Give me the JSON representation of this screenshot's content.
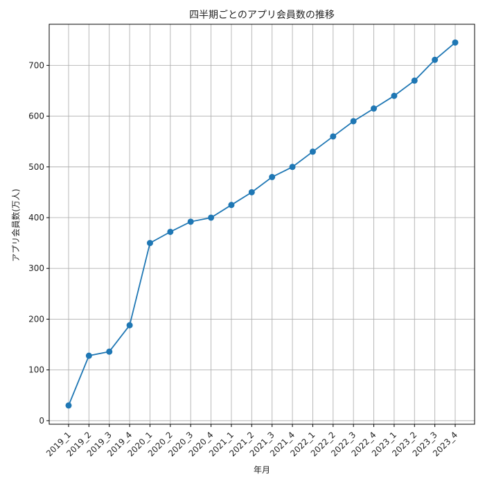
{
  "chart_data": {
    "type": "line",
    "title": "四半期ごとのアプリ会員数の推移",
    "xlabel": "年月",
    "ylabel": "アプリ会員数(万人)",
    "categories": [
      "2019_1",
      "2019_2",
      "2019_3",
      "2019_4",
      "2020_1",
      "2020_2",
      "2020_3",
      "2020_4",
      "2021_1",
      "2021_2",
      "2021_3",
      "2021_4",
      "2022_1",
      "2022_2",
      "2022_3",
      "2022_4",
      "2023_1",
      "2023_2",
      "2023_3",
      "2023_4"
    ],
    "series": [
      {
        "values": [
          30,
          128,
          136,
          188,
          350,
          372,
          392,
          400,
          425,
          450,
          480,
          500,
          530,
          560,
          590,
          615,
          640,
          670,
          711,
          745
        ]
      }
    ],
    "yticks": [
      0,
      100,
      200,
      300,
      400,
      500,
      600,
      700
    ],
    "ylim": [
      -7,
      781
    ],
    "grid": true,
    "legend": "none",
    "colors": {
      "line": "#1f77b4",
      "grid": "#b0b0b0",
      "axis": "#000000"
    }
  }
}
